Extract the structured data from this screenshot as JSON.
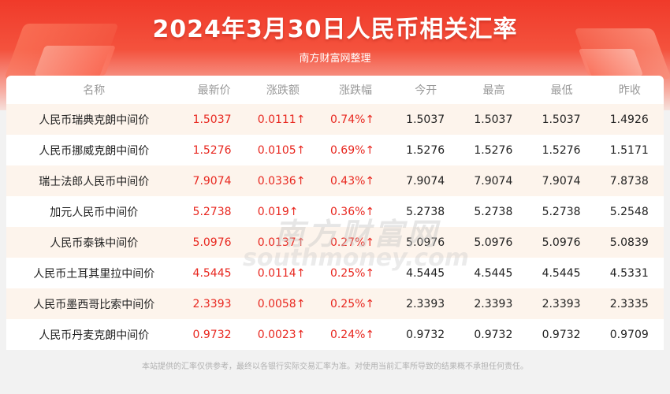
{
  "header": {
    "title": "2024年3月30日人民币相关汇率",
    "subtitle": "南方财富网整理"
  },
  "table": {
    "columns": [
      "名称",
      "最新价",
      "涨跌额",
      "涨跌幅",
      "今开",
      "最高",
      "最低",
      "昨收"
    ],
    "rows": [
      [
        "人民币瑞典克朗中间价",
        "1.5037",
        "0.0111↑",
        "0.74%↑",
        "1.5037",
        "1.5037",
        "1.5037",
        "1.4926"
      ],
      [
        "人民币挪威克朗中间价",
        "1.5276",
        "0.0105↑",
        "0.69%↑",
        "1.5276",
        "1.5276",
        "1.5276",
        "1.5171"
      ],
      [
        "瑞士法郎人民币中间价",
        "7.9074",
        "0.0336↑",
        "0.43%↑",
        "7.9074",
        "7.9074",
        "7.9074",
        "7.8738"
      ],
      [
        "加元人民币中间价",
        "5.2738",
        "0.019↑",
        "0.36%↑",
        "5.2738",
        "5.2738",
        "5.2738",
        "5.2548"
      ],
      [
        "人民币泰铢中间价",
        "5.0976",
        "0.0137↑",
        "0.27%↑",
        "5.0976",
        "5.0976",
        "5.0976",
        "5.0839"
      ],
      [
        "人民币土耳其里拉中间价",
        "4.5445",
        "0.0114↑",
        "0.25%↑",
        "4.5445",
        "4.5445",
        "4.5445",
        "4.5331"
      ],
      [
        "人民币墨西哥比索中间价",
        "2.3393",
        "0.0058↑",
        "0.25%↑",
        "2.3393",
        "2.3393",
        "2.3393",
        "2.3335"
      ],
      [
        "人民币丹麦克朗中间价",
        "0.9732",
        "0.0023↑",
        "0.24%↑",
        "0.9732",
        "0.9732",
        "0.9732",
        "0.9709"
      ]
    ]
  },
  "watermark": {
    "cn": "南方财富网",
    "en": "southmoney.com"
  },
  "footer": {
    "disclaimer": "本站提供的汇率仅供参考，最终以各银行实际交易汇率为准。对使用当前汇率所导致的结果概不承担任何责任。"
  },
  "colors": {
    "accent_red": "#e8271f",
    "banner_red": "#f03a2a",
    "row_stripe": "#fdf4ec"
  }
}
